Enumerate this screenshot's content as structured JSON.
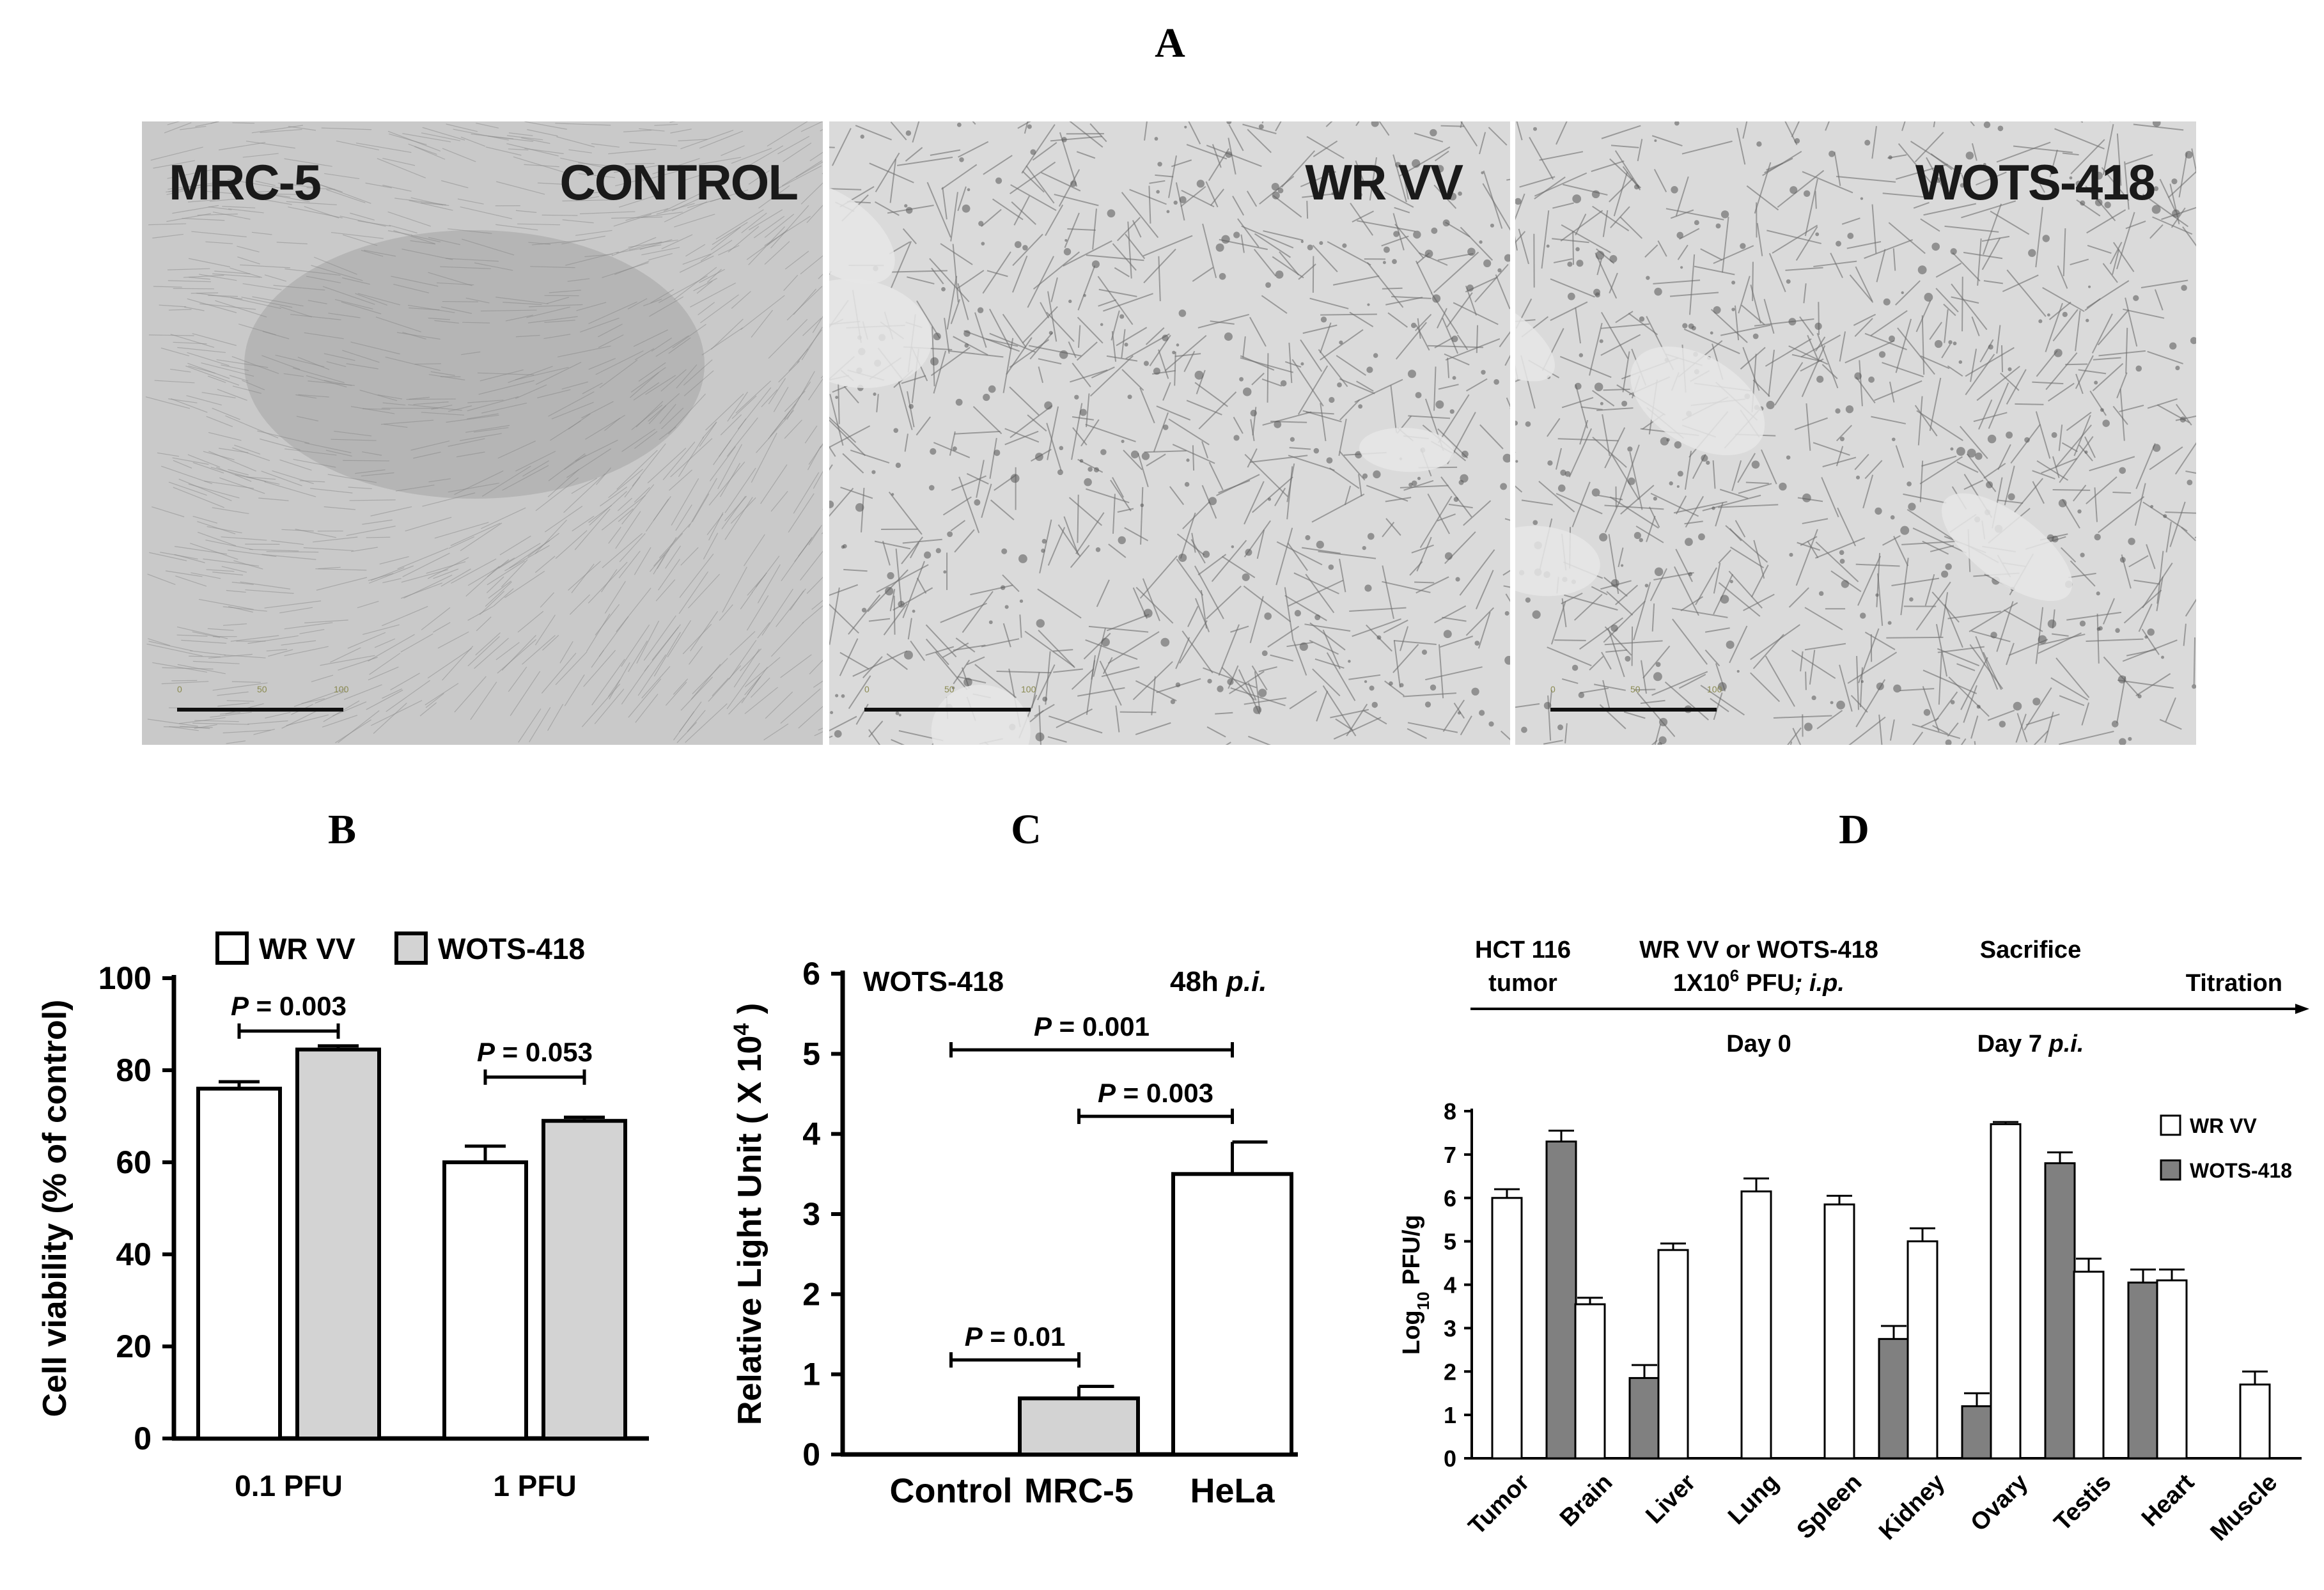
{
  "panels": {
    "a": {
      "letter": "A",
      "images": [
        {
          "left_label": "MRC-5",
          "right_label": "CONTROL",
          "scale": {
            "start": "0",
            "mid": "50",
            "end": "100"
          }
        },
        {
          "left_label": "",
          "right_label": "WR VV",
          "scale": {
            "start": "0",
            "mid": "50",
            "end": "100"
          }
        },
        {
          "left_label": "",
          "right_label": "WOTS-418",
          "scale": {
            "start": "0",
            "mid": "50",
            "end": "100"
          }
        }
      ]
    },
    "b": {
      "letter": "B"
    },
    "c": {
      "letter": "C"
    },
    "d": {
      "letter": "D"
    }
  },
  "chart_data": [
    {
      "id": "B",
      "type": "bar",
      "ylabel": "Cell viability (% of control)",
      "ylim": [
        0,
        100
      ],
      "yticks": [
        "0",
        "20",
        "40",
        "60",
        "80",
        "100"
      ],
      "categories": [
        "0.1 PFU",
        "1 PFU"
      ],
      "series": [
        {
          "name": "WR VV",
          "color": "#ffffff",
          "values": [
            76,
            60
          ],
          "errors": [
            1.5,
            3.5
          ]
        },
        {
          "name": "WOTS-418",
          "color": "#d3d3d3",
          "values": [
            84.5,
            69
          ],
          "errors": [
            0.8,
            0.8
          ]
        }
      ],
      "annotations": [
        {
          "prefix": "P",
          "text": " = 0.003"
        },
        {
          "prefix": "P",
          "text": " = 0.053"
        }
      ],
      "legend_position": "top"
    },
    {
      "id": "C",
      "type": "bar",
      "ylabel": "Relative Light Unit ( X 10",
      "ylabel_sup": "4",
      "ylabel_close": " )",
      "ylim": [
        0,
        6
      ],
      "yticks": [
        "0",
        "1",
        "2",
        "3",
        "4",
        "5",
        "6"
      ],
      "categories": [
        "Control",
        "MRC-5",
        "HeLa"
      ],
      "values": [
        0,
        0.7,
        3.5
      ],
      "errors": [
        0,
        0.15,
        0.4
      ],
      "colors": [
        "#ffffff",
        "#d3d3d3",
        "#ffffff"
      ],
      "header_left": "WOTS-418",
      "header_right": "48h",
      "header_right_italic": " p.i.",
      "annotations": [
        {
          "prefix": "P",
          "text": " = 0.001"
        },
        {
          "prefix": "P",
          "text": " = 0.003"
        },
        {
          "prefix": "P",
          "text": " = 0.01"
        }
      ]
    },
    {
      "id": "D",
      "type": "bar",
      "ylabel_main": "Log",
      "ylabel_sub": "10",
      "ylabel_rest": " PFU/g",
      "ylim": [
        0,
        8
      ],
      "yticks": [
        "0",
        "1",
        "2",
        "3",
        "4",
        "5",
        "6",
        "7",
        "8"
      ],
      "categories": [
        "Tumor",
        "Brain",
        "Liver",
        "Lung",
        "Spleen",
        "Kidney",
        "Ovary",
        "Testis",
        "Heart",
        "Muscle"
      ],
      "series": [
        {
          "name": "WR VV",
          "color": "#ffffff",
          "values": [
            6.0,
            3.55,
            4.8,
            6.15,
            5.85,
            5.0,
            7.7,
            4.3,
            4.1,
            1.7
          ],
          "errors": [
            0.2,
            0.15,
            0.15,
            0.3,
            0.2,
            0.3,
            0.05,
            0.3,
            0.25,
            0.3
          ]
        },
        {
          "name": "WOTS-418",
          "color": "#808080",
          "values": [
            7.3,
            1.85,
            null,
            null,
            2.75,
            1.2,
            6.8,
            4.05,
            null,
            null
          ],
          "errors": [
            0.25,
            0.3,
            null,
            null,
            0.3,
            0.3,
            0.25,
            0.3,
            null,
            null
          ]
        }
      ],
      "legend_position": "top-right",
      "timeline": {
        "left_top": "HCT 116",
        "left_bottom": "tumor",
        "mid_top": "WR VV or WOTS-418",
        "mid_bottom_pre": "1X10",
        "mid_bottom_sup": "6",
        "mid_bottom_post": " PFU",
        "mid_bottom_italic": "; i.p.",
        "right_top": "Sacrifice",
        "end_label": "Titration",
        "below_mid": "Day 0",
        "below_right": "Day 7",
        "below_right_italic": " p.i."
      }
    }
  ]
}
